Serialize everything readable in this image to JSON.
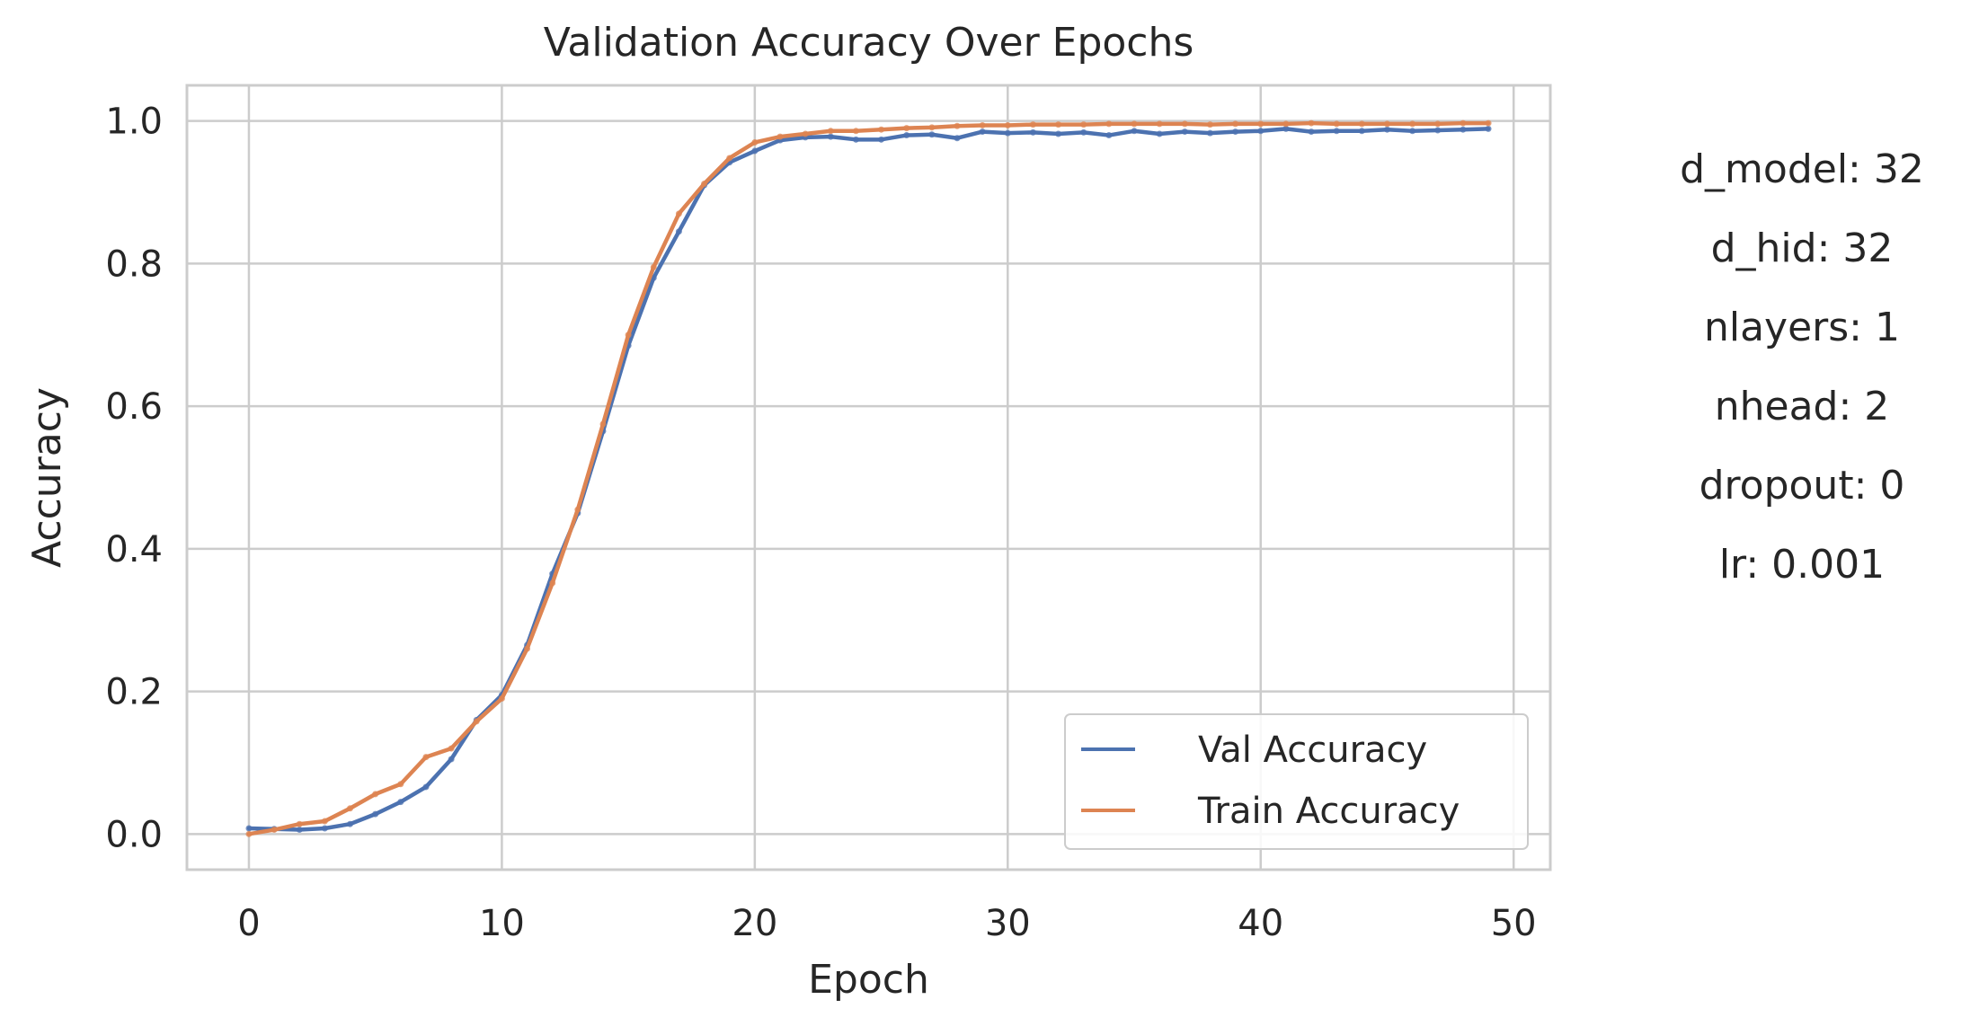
{
  "chart_data": {
    "type": "line",
    "title": "Validation Accuracy Over Epochs",
    "xlabel": "Epoch",
    "ylabel": "Accuracy",
    "xlim": [
      -2.45,
      51.45
    ],
    "ylim": [
      -0.05,
      1.05
    ],
    "xticks": [
      0,
      10,
      20,
      30,
      40,
      50
    ],
    "yticks": [
      0.0,
      0.2,
      0.4,
      0.6,
      0.8,
      1.0
    ],
    "xtick_labels": [
      "0",
      "10",
      "20",
      "30",
      "40",
      "50"
    ],
    "ytick_labels": [
      "0.0",
      "0.2",
      "0.4",
      "0.6",
      "0.8",
      "1.0"
    ],
    "grid": true,
    "legend_position": "lower right",
    "x": [
      0,
      1,
      2,
      3,
      4,
      5,
      6,
      7,
      8,
      9,
      10,
      11,
      12,
      13,
      14,
      15,
      16,
      17,
      18,
      19,
      20,
      21,
      22,
      23,
      24,
      25,
      26,
      27,
      28,
      29,
      30,
      31,
      32,
      33,
      34,
      35,
      36,
      37,
      38,
      39,
      40,
      41,
      42,
      43,
      44,
      45,
      46,
      47,
      48,
      49
    ],
    "series": [
      {
        "name": "Val Accuracy",
        "color": "#4c72b0",
        "values": [
          0.008,
          0.007,
          0.006,
          0.008,
          0.014,
          0.028,
          0.045,
          0.066,
          0.105,
          0.16,
          0.195,
          0.265,
          0.365,
          0.45,
          0.565,
          0.685,
          0.78,
          0.845,
          0.91,
          0.942,
          0.958,
          0.973,
          0.977,
          0.978,
          0.974,
          0.974,
          0.98,
          0.981,
          0.976,
          0.985,
          0.983,
          0.984,
          0.982,
          0.984,
          0.98,
          0.986,
          0.982,
          0.985,
          0.983,
          0.985,
          0.986,
          0.989,
          0.985,
          0.986,
          0.986,
          0.988,
          0.986,
          0.987,
          0.988,
          0.989
        ]
      },
      {
        "name": "Train Accuracy",
        "color": "#dd8452",
        "values": [
          0.0,
          0.006,
          0.014,
          0.018,
          0.036,
          0.056,
          0.07,
          0.108,
          0.12,
          0.158,
          0.19,
          0.26,
          0.352,
          0.455,
          0.575,
          0.7,
          0.795,
          0.87,
          0.912,
          0.948,
          0.97,
          0.978,
          0.982,
          0.986,
          0.986,
          0.988,
          0.99,
          0.991,
          0.993,
          0.994,
          0.994,
          0.995,
          0.995,
          0.995,
          0.996,
          0.996,
          0.996,
          0.996,
          0.995,
          0.996,
          0.996,
          0.996,
          0.997,
          0.996,
          0.996,
          0.996,
          0.996,
          0.996,
          0.997,
          0.997
        ]
      }
    ]
  },
  "hyperparams": {
    "d_model": "d_model: 32",
    "d_hid": "d_hid: 32",
    "nlayers": "nlayers: 1",
    "nhead": "nhead: 2",
    "dropout": "dropout: 0",
    "lr": "lr: 0.001"
  },
  "colors": {
    "grid": "#cccccc",
    "frame": "#cccccc",
    "text": "#262626"
  }
}
